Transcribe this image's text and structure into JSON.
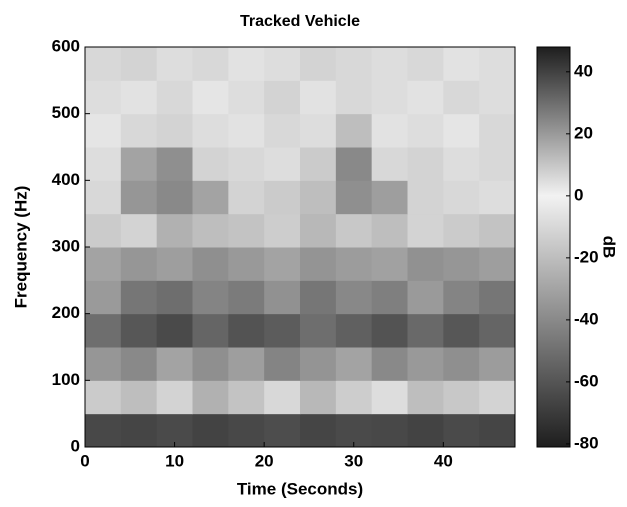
{
  "chart_data": {
    "type": "heatmap",
    "title": "Tracked Vehicle",
    "x_label": "Time (Seconds)",
    "y_label": "Frequency (Hz)",
    "colorbar_label": "dB",
    "x_bins": [
      0,
      4,
      8,
      12,
      16,
      20,
      24,
      28,
      32,
      36,
      40,
      44,
      48
    ],
    "y_bins": [
      0,
      50,
      100,
      150,
      200,
      250,
      300,
      350,
      400,
      450,
      500,
      550,
      600
    ],
    "z": [
      [
        -65,
        -66,
        -64,
        -67,
        -65,
        -63,
        -66,
        -64,
        -65,
        -67,
        -64,
        -66
      ],
      [
        -15,
        -20,
        -12,
        -25,
        -18,
        -10,
        -22,
        -14,
        -8,
        -20,
        -16,
        -12
      ],
      [
        -35,
        -40,
        -30,
        -38,
        -32,
        -42,
        -36,
        -30,
        -40,
        -34,
        -38,
        -33
      ],
      [
        30,
        35,
        38,
        32,
        36,
        34,
        30,
        33,
        36,
        31,
        35,
        32
      ],
      [
        20,
        28,
        30,
        25,
        27,
        22,
        28,
        24,
        26,
        20,
        25,
        28
      ],
      [
        -30,
        -35,
        -32,
        -38,
        -34,
        -30,
        -36,
        -33,
        -31,
        -37,
        -35,
        -32
      ],
      [
        -15,
        -12,
        -25,
        -20,
        -18,
        -14,
        -22,
        -16,
        -20,
        -12,
        -15,
        -18
      ],
      [
        -10,
        -35,
        -40,
        -30,
        -12,
        -15,
        -20,
        -38,
        -32,
        -12,
        -10,
        -8
      ],
      [
        -8,
        -30,
        -38,
        -12,
        -10,
        -8,
        -15,
        -40,
        -10,
        -12,
        -8,
        -10
      ],
      [
        -5,
        -10,
        -12,
        -8,
        -6,
        -10,
        -8,
        -20,
        -6,
        -8,
        -5,
        -10
      ],
      [
        -8,
        -6,
        -10,
        -5,
        -8,
        -12,
        -6,
        -10,
        -8,
        -6,
        -10,
        -8
      ],
      [
        -10,
        -12,
        -8,
        -10,
        -6,
        -8,
        -12,
        -10,
        -8,
        -10,
        -6,
        -8
      ]
    ],
    "xlim": [
      0,
      48
    ],
    "xticks": [
      0,
      10,
      20,
      30,
      40
    ],
    "ylim": [
      0,
      600
    ],
    "yticks": [
      0,
      100,
      200,
      300,
      400,
      500,
      600
    ],
    "clim": [
      -81,
      48
    ],
    "cticks": [
      40,
      20,
      0,
      -20,
      -40,
      -60,
      -80
    ],
    "colormap": [
      {
        "value": -81,
        "color": "#1e1e1e"
      },
      {
        "value": 0,
        "color": "#f2f2f2"
      },
      {
        "value": 48,
        "color": "#1e1e1e"
      }
    ]
  }
}
